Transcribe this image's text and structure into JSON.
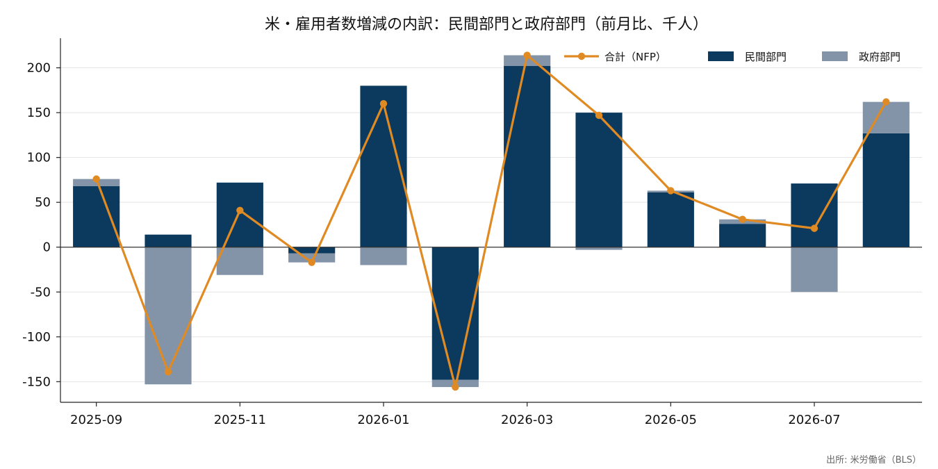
{
  "chart_data": {
    "type": "bar",
    "subtype": "stacked-bar-with-line",
    "title": "米・雇用者数増減の内訳：民間部門と政府部門（前月比、千人）",
    "xlabel": "",
    "ylabel": "",
    "categories": [
      "2025-09",
      "2025-10",
      "2025-11",
      "2025-12",
      "2026-01",
      "2026-02",
      "2026-03",
      "2026-04",
      "2026-05",
      "2026-06",
      "2026-07",
      "2026-08"
    ],
    "x_tick_labels": [
      "2025-09",
      "2025-11",
      "2026-01",
      "2026-03",
      "2026-05",
      "2026-07"
    ],
    "series": [
      {
        "name": "民間部門",
        "type": "bar",
        "color": "#0b3a5e",
        "values": [
          68,
          14,
          72,
          -7,
          180,
          -148,
          202,
          150,
          61,
          26,
          71,
          127
        ]
      },
      {
        "name": "政府部門",
        "type": "bar",
        "color": "#8494a8",
        "values": [
          8,
          -153,
          -31,
          -10,
          -20,
          -8,
          12,
          -3,
          2,
          5,
          -50,
          35
        ]
      },
      {
        "name": "合計（NFP）",
        "type": "line",
        "color": "#e08a23",
        "values": [
          76,
          -139,
          41,
          -17,
          160,
          -156,
          214,
          147,
          63,
          31,
          21,
          162
        ]
      }
    ],
    "ylim": [
      -173,
      233
    ],
    "yticks": [
      -150,
      -100,
      -50,
      0,
      50,
      100,
      150,
      200
    ],
    "grid": "horizontal",
    "legend_position": "top-right",
    "source": "出所: 米労働省（BLS）"
  }
}
